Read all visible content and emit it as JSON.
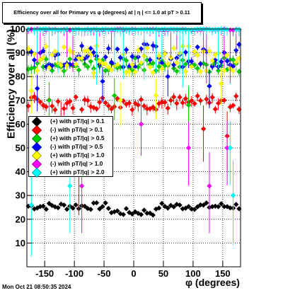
{
  "title": "Efficiency over all for Primary vs φ (degrees) at |  η | <= 1.0 at pT > 0.11",
  "timestamp": "Mon Oct 21 08:50:35 2024",
  "chart_data": {
    "type": "scatter",
    "title": "Efficiency over all for Primary vs φ (degrees) at |  η | <= 1.0 at pT > 0.11",
    "xlabel": "φ (degrees)",
    "ylabel": "Efficiency over all (%)",
    "xlim": [
      -180,
      180
    ],
    "ylim": [
      0,
      100
    ],
    "x_ticks": [
      -150,
      -100,
      -50,
      0,
      50,
      100,
      150
    ],
    "y_ticks": [
      10,
      20,
      30,
      40,
      50,
      60,
      70,
      80,
      90,
      100
    ],
    "grid": true,
    "legend_position": "left-middle",
    "series": [
      {
        "name": "(+) with pT/|q| > 0.1",
        "color": "#000000",
        "level": 25.5,
        "spread": 1.5,
        "outliers": []
      },
      {
        "name": "(-) with pT/|q| > 0.1",
        "color": "#ff0000",
        "level": 69,
        "spread": 3,
        "outliers": [
          [
            -118,
            60
          ],
          [
            -90,
            40
          ],
          [
            120,
            58
          ],
          [
            160,
            55
          ]
        ]
      },
      {
        "name": "(+) with pT/|q| > 0.5",
        "color": "#00cc00",
        "level": 85,
        "spread": 3,
        "outliers": [
          [
            -140,
            70
          ],
          [
            -30,
            72
          ],
          [
            95,
            68
          ]
        ]
      },
      {
        "name": "(-) with pT/|q| > 0.5",
        "color": "#0000ff",
        "level": 89,
        "spread": 5,
        "outliers": [
          [
            -160,
            75
          ],
          [
            -50,
            78
          ],
          [
            60,
            80
          ],
          [
            130,
            76
          ]
        ]
      },
      {
        "name": "(+) with pT/|q| > 1.0",
        "color": "#ffff00",
        "level": 87,
        "spread": 6,
        "outliers": [
          [
            -170,
            74
          ],
          [
            -20,
            70
          ],
          [
            40,
            72
          ],
          [
            150,
            77
          ]
        ]
      },
      {
        "name": "(-) with pT/|q| > 1.0",
        "color": "#ff00ff",
        "level": 100,
        "spread": 0.5,
        "outliers": [
          [
            -85,
            34
          ],
          [
            15,
            60
          ],
          [
            95,
            50
          ],
          [
            130,
            34
          ],
          [
            160,
            50
          ]
        ]
      },
      {
        "name": "(+) with pT/|q| > 2.0",
        "color": "#00ffff",
        "level": 100,
        "spread": 0.3,
        "outliers": [
          [
            -172,
            26
          ],
          [
            -105,
            34
          ],
          [
            165,
            50
          ],
          [
            170,
            30
          ]
        ]
      }
    ]
  }
}
